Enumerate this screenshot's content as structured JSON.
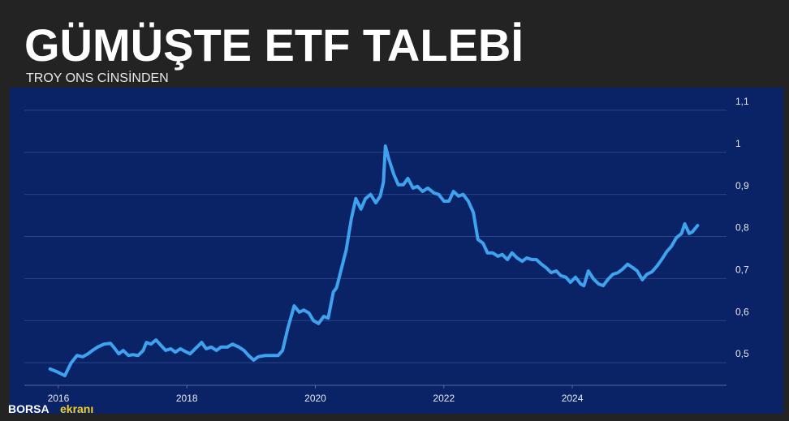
{
  "chart_data": {
    "type": "line",
    "title": "GÜMÜŞTE ETF TALEBİ",
    "subtitle": "TROY ONS CİNSİNDEN",
    "x": [
      2015.87,
      2015.97,
      2016.1,
      2016.2,
      2016.29,
      2016.38,
      2016.46,
      2016.53,
      2016.61,
      2016.71,
      2016.81,
      2016.86,
      2016.94,
      2017.01,
      2017.09,
      2017.16,
      2017.24,
      2017.32,
      2017.37,
      2017.44,
      2017.52,
      2017.59,
      2017.67,
      2017.75,
      2017.82,
      2017.9,
      2017.97,
      2018.05,
      2018.13,
      2018.23,
      2018.3,
      2018.38,
      2018.46,
      2018.53,
      2018.63,
      2018.71,
      2018.81,
      2018.89,
      2018.96,
      2019.04,
      2019.11,
      2019.22,
      2019.32,
      2019.42,
      2019.49,
      2019.57,
      2019.67,
      2019.75,
      2019.82,
      2019.9,
      2019.97,
      2020.05,
      2020.13,
      2020.2,
      2020.28,
      2020.33,
      2020.41,
      2020.48,
      2020.56,
      2020.63,
      2020.71,
      2020.78,
      2020.86,
      2020.94,
      2021.01,
      2021.06,
      2021.09,
      2021.14,
      2021.22,
      2021.29,
      2021.37,
      2021.44,
      2021.52,
      2021.59,
      2021.67,
      2021.75,
      2021.85,
      2021.92,
      2022.0,
      2022.08,
      2022.15,
      2022.23,
      2022.3,
      2022.38,
      2022.46,
      2022.53,
      2022.61,
      2022.68,
      2022.76,
      2022.84,
      2022.91,
      2022.99,
      2023.06,
      2023.14,
      2023.22,
      2023.29,
      2023.37,
      2023.44,
      2023.52,
      2023.59,
      2023.67,
      2023.75,
      2023.82,
      2023.9,
      2023.97,
      2024.05,
      2024.13,
      2024.18,
      2024.25,
      2024.33,
      2024.41,
      2024.48,
      2024.56,
      2024.63,
      2024.71,
      2024.78,
      2024.86,
      2024.94,
      2025.01,
      2025.09,
      2025.16,
      2025.24,
      2025.32,
      2025.39,
      2025.47,
      2025.54,
      2025.62,
      2025.7,
      2025.75,
      2025.82,
      2025.87,
      2025.95
    ],
    "values": [
      0.485,
      0.479,
      0.469,
      0.5,
      0.517,
      0.514,
      0.521,
      0.529,
      0.537,
      0.544,
      0.546,
      0.537,
      0.521,
      0.529,
      0.517,
      0.519,
      0.517,
      0.529,
      0.548,
      0.544,
      0.554,
      0.542,
      0.529,
      0.533,
      0.525,
      0.533,
      0.527,
      0.521,
      0.533,
      0.548,
      0.533,
      0.537,
      0.529,
      0.537,
      0.537,
      0.544,
      0.537,
      0.529,
      0.517,
      0.506,
      0.514,
      0.517,
      0.517,
      0.517,
      0.529,
      0.581,
      0.635,
      0.62,
      0.625,
      0.618,
      0.6,
      0.593,
      0.61,
      0.606,
      0.668,
      0.678,
      0.726,
      0.768,
      0.842,
      0.89,
      0.865,
      0.89,
      0.9,
      0.88,
      0.896,
      0.929,
      1.015,
      0.986,
      0.948,
      0.923,
      0.923,
      0.938,
      0.915,
      0.919,
      0.907,
      0.915,
      0.903,
      0.9,
      0.884,
      0.884,
      0.907,
      0.896,
      0.9,
      0.884,
      0.857,
      0.793,
      0.784,
      0.761,
      0.761,
      0.753,
      0.757,
      0.745,
      0.761,
      0.749,
      0.741,
      0.749,
      0.745,
      0.745,
      0.734,
      0.726,
      0.714,
      0.718,
      0.707,
      0.703,
      0.691,
      0.703,
      0.687,
      0.683,
      0.718,
      0.699,
      0.687,
      0.683,
      0.699,
      0.71,
      0.714,
      0.722,
      0.734,
      0.726,
      0.718,
      0.697,
      0.71,
      0.716,
      0.73,
      0.745,
      0.764,
      0.776,
      0.797,
      0.807,
      0.83,
      0.807,
      0.811,
      0.826
    ],
    "color": "#3ea2ee",
    "xlim": [
      2015.47,
      2026.4
    ],
    "xticks": [
      2016,
      2018,
      2020,
      2022,
      2024
    ],
    "ylim": [
      0.45,
      1.15
    ],
    "yticks": [
      {
        "value": 0.5,
        "label": "0,5"
      },
      {
        "value": 0.6,
        "label": "0,6"
      },
      {
        "value": 0.7,
        "label": "0,7"
      },
      {
        "value": 0.8,
        "label": "0,8"
      },
      {
        "value": 0.9,
        "label": "0,9"
      },
      1,
      {
        "value": 1.1,
        "label": "1,1"
      }
    ],
    "grid": true
  },
  "watermark": {
    "brand": "BORSA",
    "suffix": "ekranı"
  }
}
